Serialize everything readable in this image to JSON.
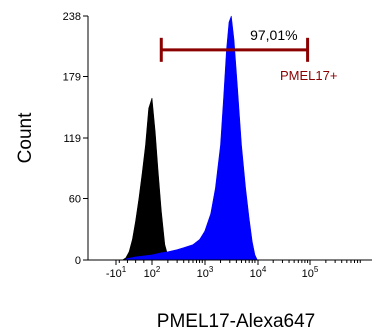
{
  "chart_data": {
    "type": "area",
    "title": "",
    "xlabel": "PMEL17-Alexa647",
    "ylabel": "Count",
    "x_scale": "biexponential",
    "ylim": [
      0,
      238
    ],
    "y_ticks": [
      0,
      60,
      119,
      179,
      238
    ],
    "y_tick_labels": [
      "0",
      "60",
      "119",
      "179",
      "238"
    ],
    "x_ticks": [
      {
        "base": "-10",
        "exp": "1",
        "value": -10
      },
      {
        "base": "10",
        "exp": "2",
        "value": 100
      },
      {
        "base": "10",
        "exp": "3",
        "value": 1000
      },
      {
        "base": "10",
        "exp": "4",
        "value": 10000
      },
      {
        "base": "10",
        "exp": "5",
        "value": 100000
      }
    ],
    "grid": false,
    "series": [
      {
        "role": "control",
        "color": "#000000",
        "x": [
          10,
          20,
          30,
          40,
          50,
          60,
          70,
          80,
          90,
          100,
          115,
          130,
          150,
          175,
          200,
          250,
          300
        ],
        "y": [
          0,
          2,
          8,
          20,
          38,
          60,
          85,
          112,
          148,
          158,
          125,
          88,
          48,
          15,
          4,
          1,
          0
        ]
      },
      {
        "role": "stained",
        "color": "#0000ff",
        "x": [
          20,
          50,
          100,
          150,
          200,
          300,
          400,
          600,
          800,
          1000,
          1300,
          1600,
          2000,
          2300,
          2600,
          2900,
          3200,
          3600,
          4200,
          5000,
          6000,
          7000,
          8000,
          9000,
          10000
        ],
        "y": [
          1,
          3,
          5,
          7,
          8,
          10,
          12,
          15,
          20,
          28,
          45,
          70,
          112,
          160,
          205,
          232,
          238,
          215,
          168,
          112,
          70,
          40,
          18,
          5,
          0
        ]
      }
    ],
    "gate": {
      "label": "PMEL17+",
      "percent_label": "97,01%",
      "x_start": 150,
      "x_end": 90000,
      "y_level": 205,
      "color": "#8b0000"
    }
  }
}
